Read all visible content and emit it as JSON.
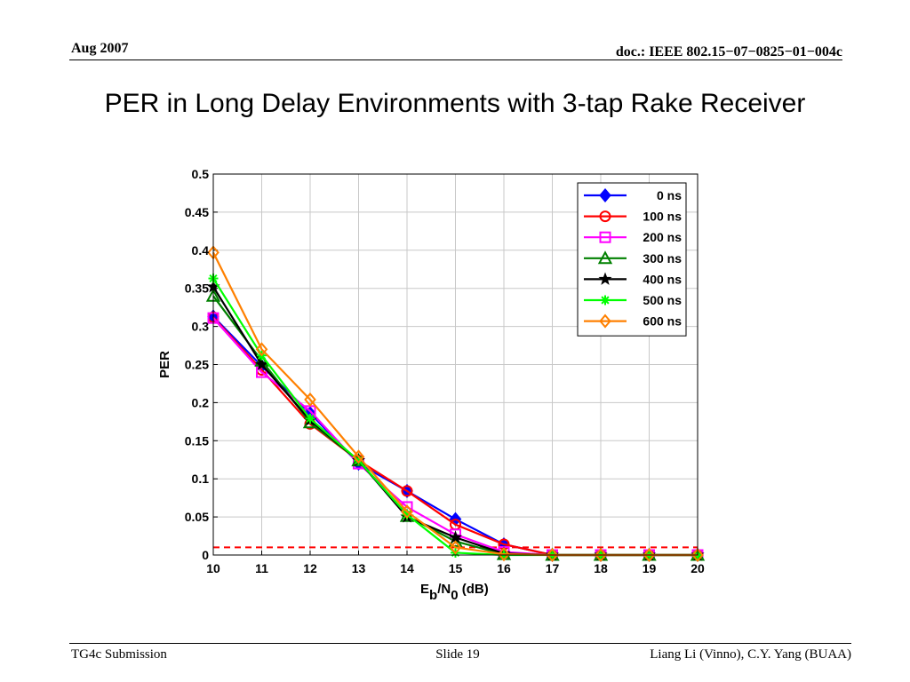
{
  "header": {
    "date": "Aug 2007",
    "doc_id": "doc.: IEEE 802.15−07−0825−01−004c"
  },
  "slide_title": "PER in Long Delay Environments with 3-tap Rake Receiver",
  "footer": {
    "left": "TG4c Submission",
    "center": "Slide 19",
    "right": "Liang Li (Vinno), C.Y. Yang (BUAA)"
  },
  "chart_data": {
    "type": "line",
    "title": "",
    "xlabel": {
      "main": "E",
      "sub1": "b",
      "mid": "/N",
      "sub2": "0",
      "tail": " (dB)"
    },
    "ylabel": "PER",
    "xlim": [
      10,
      20
    ],
    "ylim": [
      0,
      0.5
    ],
    "x_ticks": [
      10,
      11,
      12,
      13,
      14,
      15,
      16,
      17,
      18,
      19,
      20
    ],
    "y_ticks": [
      0,
      0.05,
      0.1,
      0.15,
      0.2,
      0.25,
      0.3,
      0.35,
      0.4,
      0.45,
      0.5
    ],
    "y_tick_labels": [
      "0",
      "0.05",
      "0.1",
      "0.15",
      "0.2",
      "0.25",
      "0.3",
      "0.35",
      "0.4",
      "0.45",
      "0.5"
    ],
    "grid": true,
    "legend_position": "top-right",
    "x": [
      10,
      11,
      12,
      13,
      14,
      15,
      16,
      17,
      18,
      19,
      20
    ],
    "series": [
      {
        "name": "0 ns",
        "color": "#0000ff",
        "marker": "diamond-filled",
        "values": [
          0.313,
          0.248,
          0.186,
          0.12,
          0.084,
          0.047,
          0.014,
          0,
          0,
          0,
          0
        ]
      },
      {
        "name": "100 ns",
        "color": "#ff0000",
        "marker": "circle",
        "values": [
          0.312,
          0.243,
          0.172,
          0.124,
          0.084,
          0.04,
          0.014,
          0,
          0,
          0,
          0
        ]
      },
      {
        "name": "200 ns",
        "color": "#ff00ff",
        "marker": "square",
        "values": [
          0.311,
          0.24,
          0.189,
          0.12,
          0.063,
          0.027,
          0.004,
          0,
          0,
          0,
          0
        ]
      },
      {
        "name": "300 ns",
        "color": "#008000",
        "marker": "triangle",
        "values": [
          0.34,
          0.255,
          0.174,
          0.124,
          0.051,
          0.018,
          0.001,
          0,
          0,
          0,
          0
        ]
      },
      {
        "name": "400 ns",
        "color": "#000000",
        "marker": "star",
        "values": [
          0.352,
          0.25,
          0.177,
          0.124,
          0.05,
          0.023,
          0.002,
          0,
          0,
          0,
          0
        ]
      },
      {
        "name": "500 ns",
        "color": "#00ff00",
        "marker": "asterisk",
        "values": [
          0.363,
          0.262,
          0.179,
          0.124,
          0.053,
          0.003,
          0,
          0,
          0,
          0,
          0
        ]
      },
      {
        "name": "600 ns",
        "color": "#ff8000",
        "marker": "diamond",
        "values": [
          0.397,
          0.27,
          0.204,
          0.129,
          0.057,
          0.01,
          0.001,
          0,
          0,
          0,
          0
        ]
      }
    ],
    "reference_line": {
      "y": 0.01,
      "color": "#ff0000",
      "style": "dashed"
    }
  }
}
